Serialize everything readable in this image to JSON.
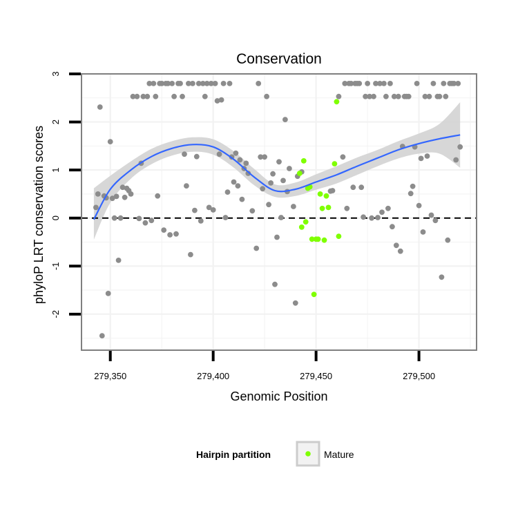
{
  "chart_data": {
    "type": "scatter",
    "title": "Conservation",
    "xlabel": "Genomic Position",
    "ylabel": "phyloP LRT conservation scores",
    "xlim": [
      279336,
      279528
    ],
    "ylim": [
      -2.75,
      3.0
    ],
    "xticks": [
      279350,
      279400,
      279450,
      279500
    ],
    "xtick_labels": [
      "279,350",
      "279,400",
      "279,450",
      "279,500"
    ],
    "yticks": [
      -2,
      -1,
      0,
      1,
      2,
      3
    ],
    "ytick_labels": [
      "-2",
      "-1",
      "0",
      "1",
      "2",
      "3"
    ],
    "grid": true,
    "reference_line": {
      "y": 0,
      "style": "dashed"
    },
    "legend": {
      "position": "bottom",
      "title": "Hairpin partition",
      "entries": [
        {
          "label": "Mature",
          "color": "#7fff00"
        }
      ]
    },
    "colors": {
      "points": "#8c8c8c",
      "mature": "#7fff00",
      "smooth": "#3366ff",
      "band": "#d3d3d3",
      "grid": "#f2f2f2",
      "frame": "#7f7f7f"
    },
    "series": [
      {
        "name": "",
        "color": "#8c8c8c",
        "points": [
          [
            279343,
            0.22
          ],
          [
            279344,
            0.5
          ],
          [
            279345,
            2.31
          ],
          [
            279346,
            -2.45
          ],
          [
            279347,
            0.46
          ],
          [
            279348,
            0.42
          ],
          [
            279349,
            -1.57
          ],
          [
            279350,
            1.59
          ],
          [
            279351,
            0.41
          ],
          [
            279352,
            0.0
          ],
          [
            279353,
            0.45
          ],
          [
            279354,
            -0.88
          ],
          [
            279355,
            0.0
          ],
          [
            279356,
            0.64
          ],
          [
            279357,
            0.43
          ],
          [
            279358,
            0.62
          ],
          [
            279359,
            0.57
          ],
          [
            279360,
            0.5
          ],
          [
            279361,
            2.53
          ],
          [
            279363,
            2.53
          ],
          [
            279364,
            -0.01
          ],
          [
            279365,
            1.14
          ],
          [
            279366,
            2.53
          ],
          [
            279367,
            -0.1
          ],
          [
            279368,
            2.53
          ],
          [
            279369,
            2.8
          ],
          [
            279370,
            -0.05
          ],
          [
            279371,
            2.8
          ],
          [
            279372,
            2.53
          ],
          [
            279373,
            0.46
          ],
          [
            279374,
            2.8
          ],
          [
            279375,
            2.8
          ],
          [
            279376,
            -0.25
          ],
          [
            279377,
            2.8
          ],
          [
            279378,
            2.8
          ],
          [
            279379,
            -0.35
          ],
          [
            279380,
            2.8
          ],
          [
            279381,
            2.53
          ],
          [
            279382,
            -0.33
          ],
          [
            279383,
            2.8
          ],
          [
            279384,
            2.8
          ],
          [
            279385,
            2.53
          ],
          [
            279386,
            1.33
          ],
          [
            279387,
            0.67
          ],
          [
            279388,
            2.8
          ],
          [
            279389,
            -0.76
          ],
          [
            279390,
            2.8
          ],
          [
            279391,
            0.16
          ],
          [
            279392,
            1.28
          ],
          [
            279393,
            2.8
          ],
          [
            279394,
            -0.06
          ],
          [
            279395,
            2.8
          ],
          [
            279396,
            2.53
          ],
          [
            279397,
            2.8
          ],
          [
            279398,
            0.22
          ],
          [
            279399,
            2.8
          ],
          [
            279400,
            0.17
          ],
          [
            279401,
            2.8
          ],
          [
            279402,
            2.44
          ],
          [
            279403,
            1.33
          ],
          [
            279404,
            2.46
          ],
          [
            279405,
            2.8
          ],
          [
            279406,
            0.01
          ],
          [
            279407,
            0.54
          ],
          [
            279408,
            2.8
          ],
          [
            279409,
            1.27
          ],
          [
            279410,
            0.75
          ],
          [
            279411,
            1.35
          ],
          [
            279412,
            0.67
          ],
          [
            279413,
            1.21
          ],
          [
            279414,
            0.39
          ],
          [
            279415,
            1.03
          ],
          [
            279416,
            1.14
          ],
          [
            279417,
            0.93
          ],
          [
            279419,
            0.15
          ],
          [
            279421,
            -0.63
          ],
          [
            279422,
            2.8
          ],
          [
            279423,
            1.27
          ],
          [
            279424,
            0.61
          ],
          [
            279425,
            1.27
          ],
          [
            279426,
            2.53
          ],
          [
            279427,
            0.28
          ],
          [
            279428,
            0.73
          ],
          [
            279429,
            0.92
          ],
          [
            279430,
            -1.38
          ],
          [
            279431,
            -0.4
          ],
          [
            279432,
            1.17
          ],
          [
            279433,
            0.01
          ],
          [
            279434,
            0.78
          ],
          [
            279435,
            2.05
          ],
          [
            279436,
            0.55
          ],
          [
            279437,
            1.03
          ],
          [
            279439,
            0.24
          ],
          [
            279440,
            -1.77
          ],
          [
            279441,
            0.87
          ],
          [
            279443,
            0.96
          ],
          [
            279457,
            0.56
          ],
          [
            279458,
            0.57
          ],
          [
            279461,
            2.53
          ],
          [
            279463,
            1.27
          ],
          [
            279464,
            2.8
          ],
          [
            279465,
            0.2
          ],
          [
            279466,
            2.8
          ],
          [
            279467,
            2.8
          ],
          [
            279468,
            0.64
          ],
          [
            279469,
            2.8
          ],
          [
            279470,
            2.8
          ],
          [
            279471,
            2.8
          ],
          [
            279472,
            0.64
          ],
          [
            279473,
            0.02
          ],
          [
            279474,
            2.53
          ],
          [
            279475,
            2.8
          ],
          [
            279476,
            2.53
          ],
          [
            279477,
            0.0
          ],
          [
            279478,
            2.53
          ],
          [
            279479,
            2.8
          ],
          [
            279480,
            0.01
          ],
          [
            279481,
            2.8
          ],
          [
            279482,
            0.12
          ],
          [
            279483,
            2.8
          ],
          [
            279484,
            2.53
          ],
          [
            279485,
            0.2
          ],
          [
            279486,
            2.8
          ],
          [
            279487,
            -0.18
          ],
          [
            279488,
            2.53
          ],
          [
            279489,
            -0.57
          ],
          [
            279490,
            2.53
          ],
          [
            279491,
            -0.69
          ],
          [
            279492,
            1.49
          ],
          [
            279493,
            2.53
          ],
          [
            279494,
            2.53
          ],
          [
            279495,
            2.53
          ],
          [
            279496,
            0.51
          ],
          [
            279497,
            0.66
          ],
          [
            279498,
            1.48
          ],
          [
            279499,
            2.8
          ],
          [
            279500,
            0.26
          ],
          [
            279501,
            1.24
          ],
          [
            279502,
            -0.29
          ],
          [
            279503,
            2.53
          ],
          [
            279504,
            1.29
          ],
          [
            279505,
            2.53
          ],
          [
            279506,
            0.06
          ],
          [
            279507,
            2.8
          ],
          [
            279508,
            -0.05
          ],
          [
            279509,
            2.53
          ],
          [
            279510,
            2.53
          ],
          [
            279511,
            -1.23
          ],
          [
            279512,
            2.8
          ],
          [
            279513,
            2.53
          ],
          [
            279514,
            -0.46
          ],
          [
            279515,
            2.8
          ],
          [
            279516,
            2.8
          ],
          [
            279517,
            2.8
          ],
          [
            279518,
            1.21
          ],
          [
            279519,
            2.8
          ],
          [
            279520,
            1.48
          ]
        ]
      },
      {
        "name": "Mature",
        "color": "#7fff00",
        "points": [
          [
            279442,
            0.93
          ],
          [
            279443,
            -0.19
          ],
          [
            279444,
            1.19
          ],
          [
            279445,
            -0.08
          ],
          [
            279446,
            0.62
          ],
          [
            279447,
            0.65
          ],
          [
            279448,
            -0.44
          ],
          [
            279449,
            -1.59
          ],
          [
            279450,
            -0.44
          ],
          [
            279451,
            -0.44
          ],
          [
            279452,
            0.5
          ],
          [
            279453,
            0.2
          ],
          [
            279454,
            -0.46
          ],
          [
            279455,
            0.46
          ],
          [
            279456,
            0.22
          ],
          [
            279459,
            1.13
          ],
          [
            279460,
            2.42
          ],
          [
            279461,
            -0.38
          ]
        ]
      }
    ],
    "smooth": {
      "x": [
        279342,
        279350,
        279360,
        279370,
        279380,
        279390,
        279400,
        279410,
        279420,
        279430,
        279440,
        279450,
        279460,
        279470,
        279480,
        279490,
        279500,
        279510,
        279520
      ],
      "y": [
        -0.03,
        0.6,
        1.0,
        1.28,
        1.45,
        1.53,
        1.48,
        1.22,
        0.85,
        0.57,
        0.6,
        0.75,
        0.9,
        1.08,
        1.25,
        1.42,
        1.55,
        1.65,
        1.73
      ],
      "lower": [
        -0.45,
        0.32,
        0.82,
        1.12,
        1.3,
        1.38,
        1.32,
        1.05,
        0.68,
        0.44,
        0.46,
        0.59,
        0.72,
        0.9,
        1.08,
        1.24,
        1.34,
        1.34,
        1.05
      ],
      "upper": [
        0.62,
        0.88,
        1.18,
        1.44,
        1.6,
        1.68,
        1.64,
        1.39,
        1.02,
        0.7,
        0.74,
        0.91,
        1.08,
        1.26,
        1.42,
        1.6,
        1.76,
        1.96,
        2.41
      ]
    }
  }
}
